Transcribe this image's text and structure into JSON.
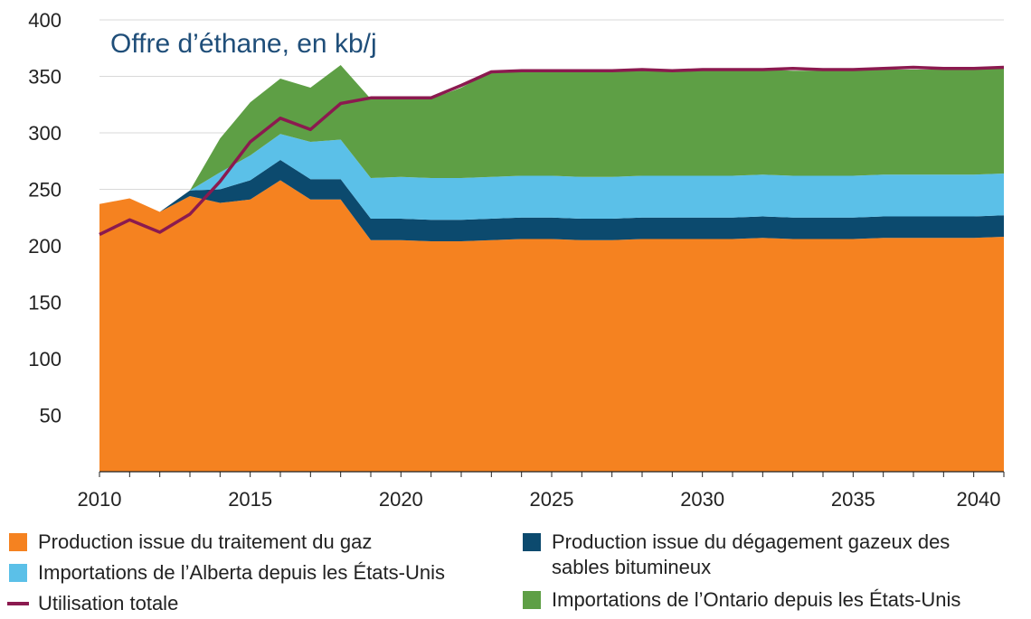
{
  "chart_data": {
    "type": "area",
    "title": "Offre d’éthane, en kb/j",
    "xlabel": "",
    "ylabel": "",
    "xlim": [
      2010,
      2040
    ],
    "ylim": [
      0,
      400
    ],
    "y_ticks": [
      50,
      100,
      150,
      200,
      250,
      300,
      350,
      400
    ],
    "x_ticks": [
      2010,
      2015,
      2020,
      2025,
      2030,
      2035,
      2040
    ],
    "grid": "horizontal",
    "legend_position": "bottom",
    "x": [
      2010,
      2011,
      2012,
      2013,
      2014,
      2015,
      2016,
      2017,
      2018,
      2019,
      2020,
      2021,
      2022,
      2023,
      2024,
      2025,
      2026,
      2027,
      2028,
      2029,
      2030,
      2031,
      2032,
      2033,
      2034,
      2035,
      2036,
      2037,
      2038,
      2039,
      2040
    ],
    "series": [
      {
        "name": "Production issue du traitement du gaz",
        "color": "#f58220",
        "kind": "area",
        "values": [
          237,
          242,
          230,
          244,
          238,
          241,
          258,
          241,
          241,
          205,
          205,
          204,
          204,
          205,
          206,
          206,
          205,
          205,
          206,
          206,
          206,
          206,
          207,
          206,
          206,
          206,
          207,
          207,
          207,
          207,
          208
        ]
      },
      {
        "name": "Production issue du dégagement gazeux des sables bitumineux",
        "color": "#0c4a6e",
        "kind": "area",
        "values": [
          0,
          0,
          0,
          5,
          12,
          17,
          18,
          18,
          18,
          19,
          19,
          19,
          19,
          19,
          19,
          19,
          19,
          19,
          19,
          19,
          19,
          19,
          19,
          19,
          19,
          19,
          19,
          19,
          19,
          19,
          19
        ]
      },
      {
        "name": "Importations de l’Alberta depuis les États-Unis",
        "color": "#5bc0e8",
        "kind": "area",
        "values": [
          0,
          0,
          0,
          0,
          15,
          22,
          23,
          33,
          35,
          36,
          37,
          37,
          37,
          37,
          37,
          37,
          37,
          37,
          37,
          37,
          37,
          37,
          37,
          37,
          37,
          37,
          37,
          37,
          37,
          37,
          37
        ]
      },
      {
        "name": "Importations de l’Ontario depuis les États-Unis",
        "color": "#5e9f45",
        "kind": "area",
        "values": [
          0,
          0,
          0,
          0,
          30,
          47,
          49,
          48,
          66,
          70,
          70,
          70,
          80,
          93,
          92,
          92,
          93,
          93,
          93,
          93,
          93,
          93,
          93,
          93,
          93,
          93,
          93,
          93,
          93,
          93,
          94
        ]
      },
      {
        "name": "Utilisation totale",
        "color": "#8b1a4f",
        "kind": "line",
        "values": [
          210,
          223,
          212,
          228,
          257,
          292,
          313,
          303,
          326,
          331,
          331,
          331,
          342,
          354,
          355,
          355,
          355,
          355,
          356,
          355,
          356,
          356,
          356,
          357,
          356,
          356,
          357,
          358,
          357,
          357,
          358
        ]
      }
    ]
  },
  "legend": {
    "gas_processing": "Production issue du traitement du gaz",
    "oil_sands_line1": "Production issue du dégagement gazeux des",
    "oil_sands_line2": "sables bitumineux",
    "alberta": "Importations de l’Alberta depuis les États-Unis",
    "ontario": "Importations de l’Ontario depuis les États-Unis",
    "total": "Utilisation totale"
  },
  "colors": {
    "gridline": "#d9d9d9",
    "axis": "#222222",
    "title": "#1f4e79"
  }
}
